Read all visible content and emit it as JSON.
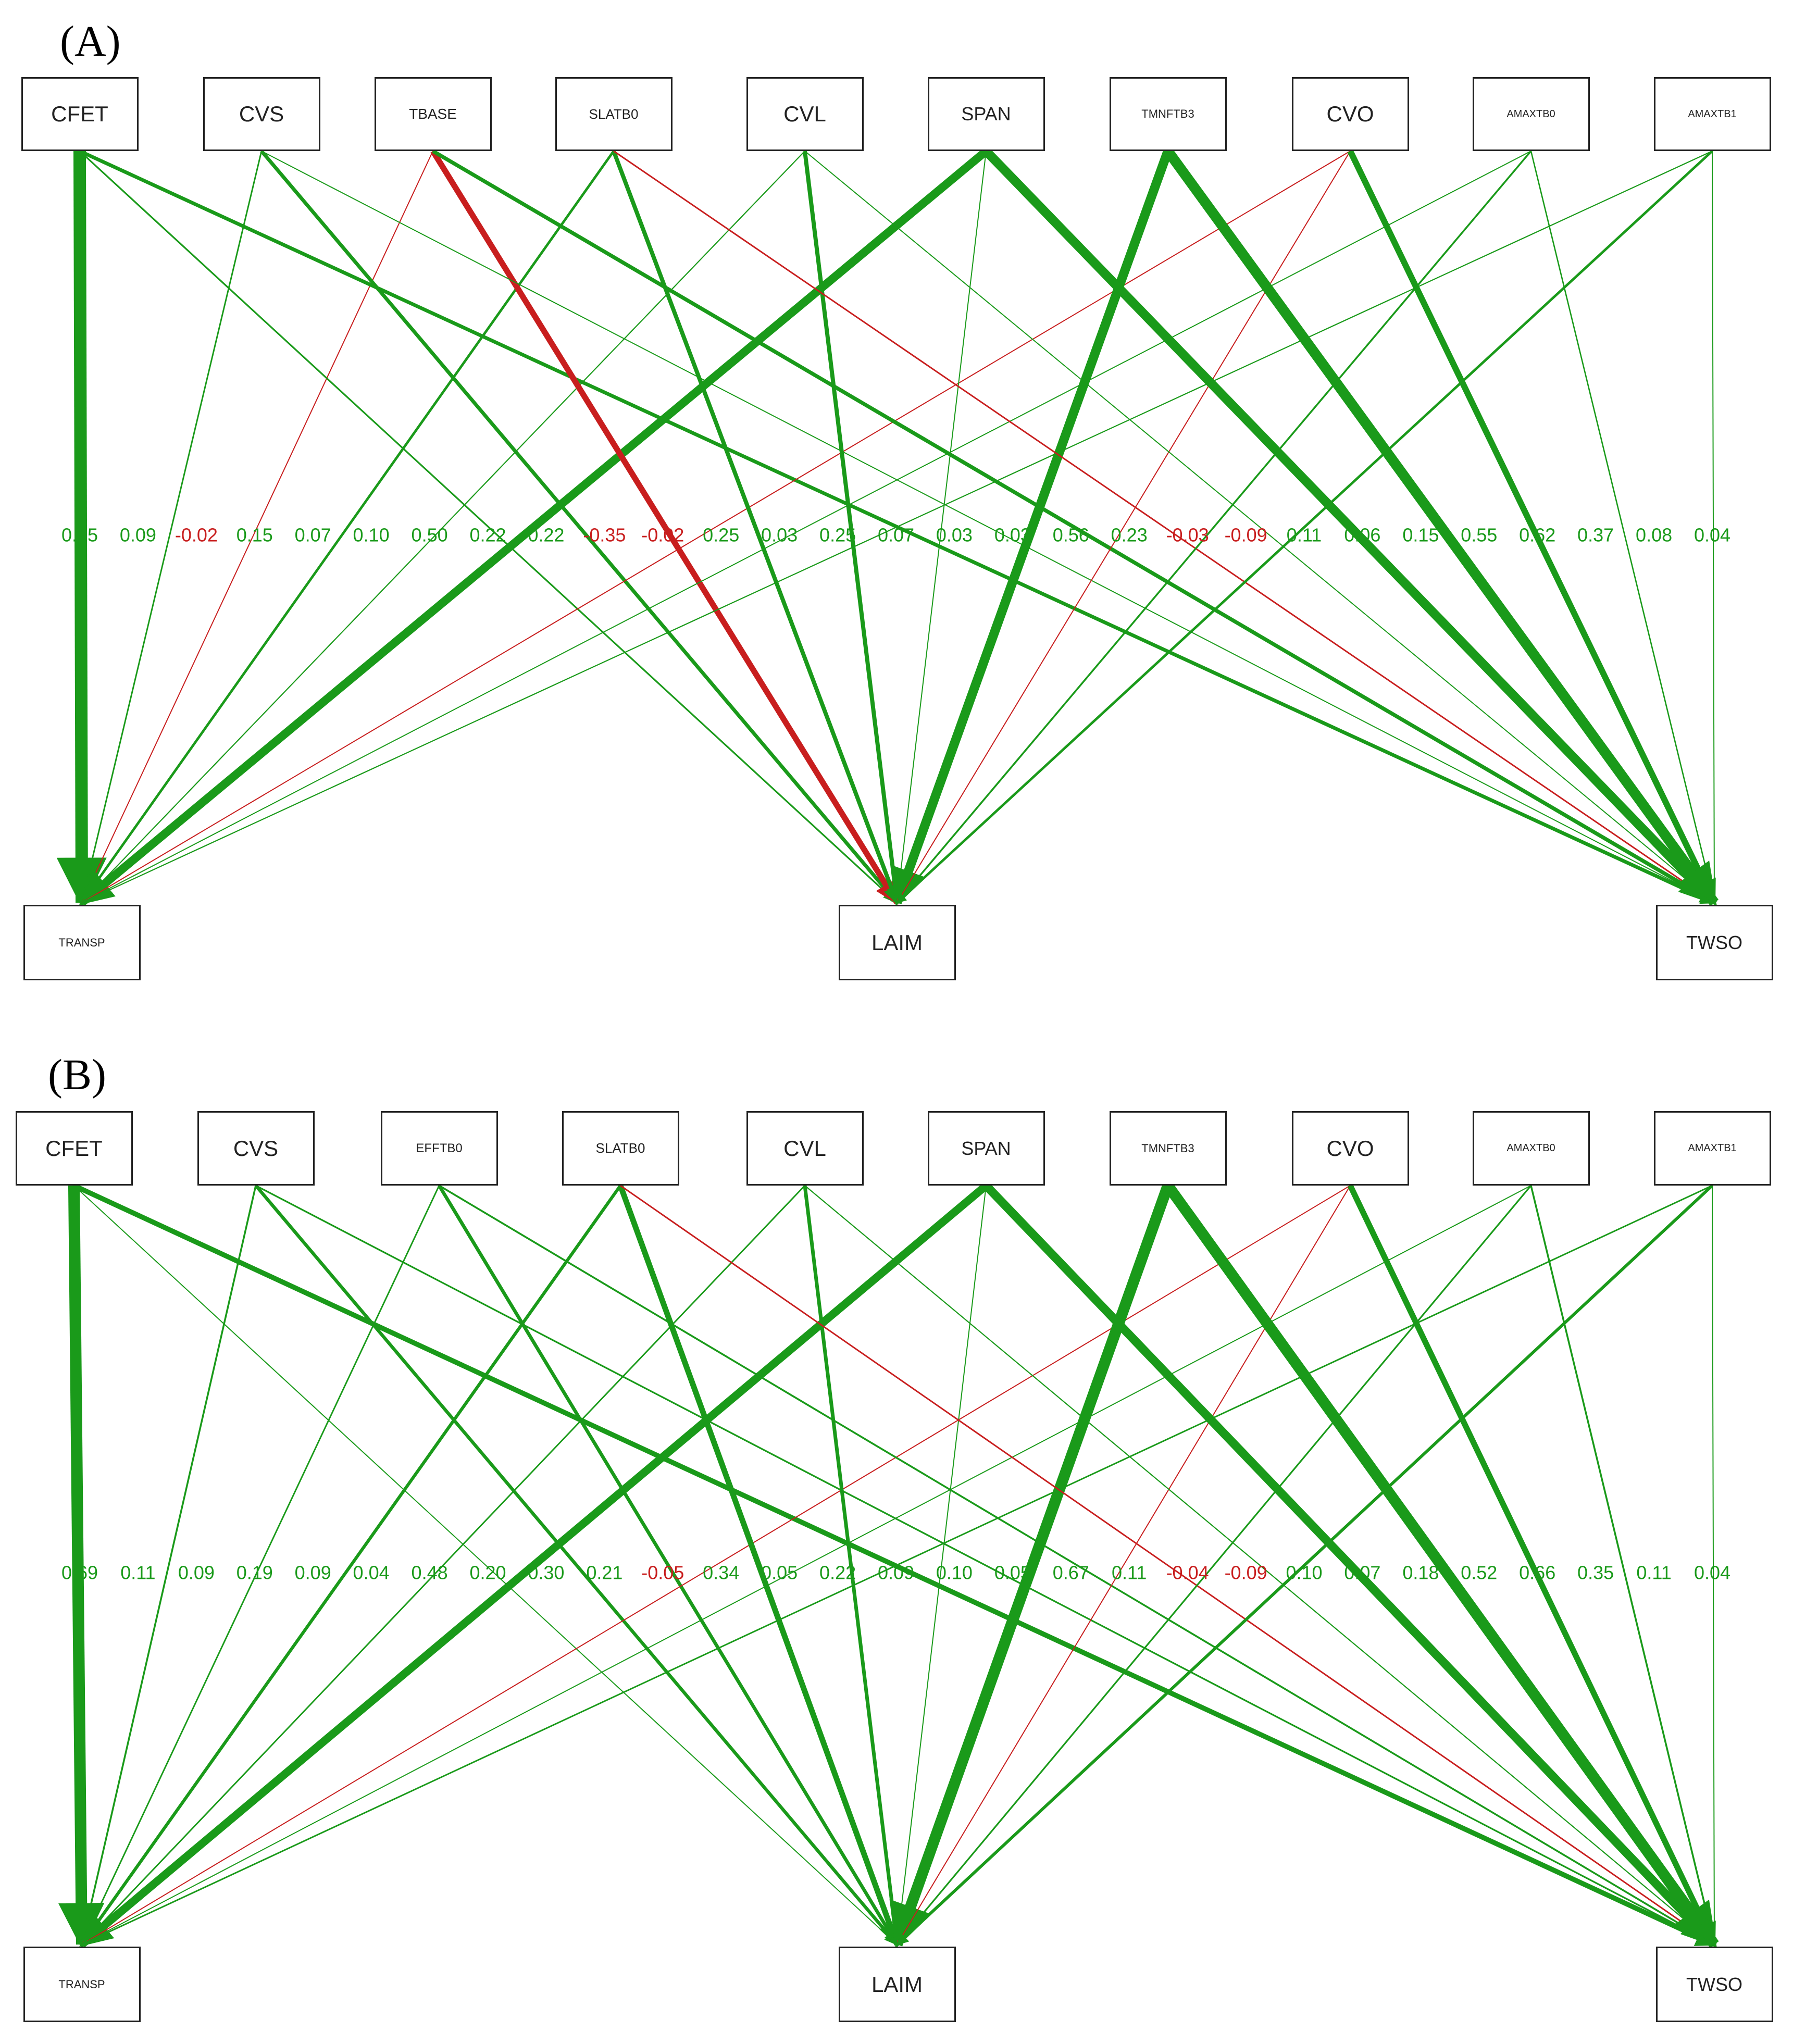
{
  "colors": {
    "positive": "#1a9a1a",
    "negative": "#c81e1e",
    "node_border": "#222222"
  },
  "panels": [
    {
      "label": "(A)",
      "sources": [
        "CFET",
        "CVS",
        "TBASE",
        "SLATB0",
        "CVL",
        "SPAN",
        "TMNFTB3",
        "CVO",
        "AMAXTB0",
        "AMAXTB1"
      ],
      "targets": [
        "TRANSP",
        "LAIM",
        "TWSO"
      ],
      "edges": [
        {
          "from": "CFET",
          "to": "TRANSP",
          "value": 0.75
        },
        {
          "from": "CVS",
          "to": "TRANSP",
          "value": 0.09
        },
        {
          "from": "TBASE",
          "to": "TRANSP",
          "value": -0.02
        },
        {
          "from": "SLATB0",
          "to": "TRANSP",
          "value": 0.15
        },
        {
          "from": "CVL",
          "to": "TRANSP",
          "value": 0.07
        },
        {
          "from": "CFET",
          "to": "LAIM",
          "value": 0.1
        },
        {
          "from": "SPAN",
          "to": "TRANSP",
          "value": 0.5
        },
        {
          "from": "CVS",
          "to": "LAIM",
          "value": 0.22
        },
        {
          "from": "CFET",
          "to": "TWSO",
          "value": 0.22
        },
        {
          "from": "TBASE",
          "to": "LAIM",
          "value": -0.35
        },
        {
          "from": "CVO",
          "to": "TRANSP",
          "value": -0.02
        },
        {
          "from": "SLATB0",
          "to": "LAIM",
          "value": 0.25
        },
        {
          "from": "AMAXTB0",
          "to": "TRANSP",
          "value": 0.03
        },
        {
          "from": "CVL",
          "to": "LAIM",
          "value": 0.25
        },
        {
          "from": "AMAXTB1",
          "to": "TRANSP",
          "value": 0.07
        },
        {
          "from": "CVS",
          "to": "TWSO",
          "value": 0.03
        },
        {
          "from": "SPAN",
          "to": "LAIM",
          "value": 0.03
        },
        {
          "from": "TMNFTB3",
          "to": "LAIM",
          "value": 0.56
        },
        {
          "from": "TBASE",
          "to": "TWSO",
          "value": 0.23
        },
        {
          "from": "CVO",
          "to": "LAIM",
          "value": -0.03
        },
        {
          "from": "SLATB0",
          "to": "TWSO",
          "value": -0.09
        },
        {
          "from": "AMAXTB0",
          "to": "LAIM",
          "value": 0.11
        },
        {
          "from": "CVL",
          "to": "TWSO",
          "value": 0.06
        },
        {
          "from": "AMAXTB1",
          "to": "LAIM",
          "value": 0.15
        },
        {
          "from": "SPAN",
          "to": "TWSO",
          "value": 0.55
        },
        {
          "from": "TMNFTB3",
          "to": "TWSO",
          "value": 0.62
        },
        {
          "from": "CVO",
          "to": "TWSO",
          "value": 0.37
        },
        {
          "from": "AMAXTB0",
          "to": "TWSO",
          "value": 0.08
        },
        {
          "from": "AMAXTB1",
          "to": "TWSO",
          "value": 0.04
        }
      ]
    },
    {
      "label": "(B)",
      "sources": [
        "CFET",
        "CVS",
        "EFFTB0",
        "SLATB0",
        "CVL",
        "SPAN",
        "TMNFTB3",
        "CVO",
        "AMAXTB0",
        "AMAXTB1"
      ],
      "targets": [
        "TRANSP",
        "LAIM",
        "TWSO"
      ],
      "edges": [
        {
          "from": "CFET",
          "to": "TRANSP",
          "value": 0.69
        },
        {
          "from": "CVS",
          "to": "TRANSP",
          "value": 0.11
        },
        {
          "from": "EFFTB0",
          "to": "TRANSP",
          "value": 0.09
        },
        {
          "from": "SLATB0",
          "to": "TRANSP",
          "value": 0.19
        },
        {
          "from": "CVL",
          "to": "TRANSP",
          "value": 0.09
        },
        {
          "from": "CFET",
          "to": "LAIM",
          "value": 0.04
        },
        {
          "from": "SPAN",
          "to": "TRANSP",
          "value": 0.48
        },
        {
          "from": "CVS",
          "to": "LAIM",
          "value": 0.2
        },
        {
          "from": "CFET",
          "to": "TWSO",
          "value": 0.3
        },
        {
          "from": "EFFTB0",
          "to": "LAIM",
          "value": 0.21
        },
        {
          "from": "CVO",
          "to": "TRANSP",
          "value": -0.05
        },
        {
          "from": "SLATB0",
          "to": "LAIM",
          "value": 0.34
        },
        {
          "from": "AMAXTB0",
          "to": "TRANSP",
          "value": 0.05
        },
        {
          "from": "CVL",
          "to": "LAIM",
          "value": 0.22
        },
        {
          "from": "AMAXTB1",
          "to": "TRANSP",
          "value": 0.09
        },
        {
          "from": "CVS",
          "to": "TWSO",
          "value": 0.1
        },
        {
          "from": "SPAN",
          "to": "LAIM",
          "value": 0.05
        },
        {
          "from": "TMNFTB3",
          "to": "LAIM",
          "value": 0.67
        },
        {
          "from": "EFFTB0",
          "to": "TWSO",
          "value": 0.11
        },
        {
          "from": "CVO",
          "to": "LAIM",
          "value": -0.04
        },
        {
          "from": "SLATB0",
          "to": "TWSO",
          "value": -0.09
        },
        {
          "from": "AMAXTB0",
          "to": "LAIM",
          "value": 0.1
        },
        {
          "from": "CVL",
          "to": "TWSO",
          "value": 0.07
        },
        {
          "from": "AMAXTB1",
          "to": "LAIM",
          "value": 0.18
        },
        {
          "from": "SPAN",
          "to": "TWSO",
          "value": 0.52
        },
        {
          "from": "TMNFTB3",
          "to": "TWSO",
          "value": 0.66
        },
        {
          "from": "CVO",
          "to": "TWSO",
          "value": 0.35
        },
        {
          "from": "AMAXTB0",
          "to": "TWSO",
          "value": 0.11
        },
        {
          "from": "AMAXTB1",
          "to": "TWSO",
          "value": 0.04
        }
      ]
    }
  ]
}
